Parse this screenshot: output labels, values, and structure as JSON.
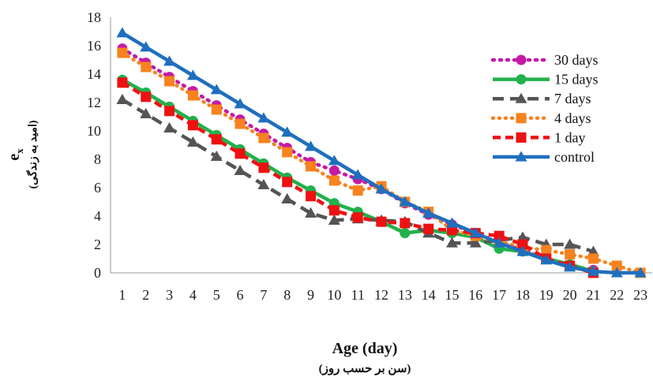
{
  "chart_data": {
    "type": "line",
    "xlabel": "Age (day)",
    "xlabel_sub": "(سن بر حسب روز)",
    "ylabel_main": "e",
    "ylabel_sub_x": "x",
    "ylabel_sub": "(امید به زندگی)",
    "xlim": [
      1,
      23
    ],
    "ylim": [
      0,
      18
    ],
    "y_ticks": [
      0,
      2,
      4,
      6,
      8,
      10,
      12,
      14,
      16,
      18
    ],
    "grid": false,
    "legend_position": "right",
    "x": [
      1,
      2,
      3,
      4,
      5,
      6,
      7,
      8,
      9,
      10,
      11,
      12,
      13,
      14,
      15,
      16,
      17,
      18,
      19,
      20,
      21,
      22,
      23
    ],
    "series": [
      {
        "name": "30 days",
        "color": "#c41aa6",
        "dash": "2 7",
        "marker": "circle",
        "x": [
          1,
          2,
          3,
          4,
          5,
          6,
          7,
          8,
          9,
          10,
          11,
          12,
          13,
          14,
          15,
          16,
          17,
          18,
          19,
          20,
          21
        ],
        "values": [
          15.8,
          14.8,
          13.8,
          12.8,
          11.8,
          10.8,
          9.8,
          8.8,
          7.8,
          7.2,
          6.6,
          5.9,
          4.9,
          4.1,
          3.4,
          2.8,
          2.1,
          1.6,
          1.0,
          0.5,
          0.2
        ]
      },
      {
        "name": "15 days",
        "color": "#22b14c",
        "dash": "",
        "marker": "circle",
        "x": [
          1,
          2,
          3,
          4,
          5,
          6,
          7,
          8,
          9,
          10,
          11,
          12,
          13,
          14,
          15,
          16,
          17,
          18,
          19,
          20,
          21
        ],
        "values": [
          13.6,
          12.7,
          11.7,
          10.7,
          9.7,
          8.7,
          7.7,
          6.7,
          5.8,
          4.9,
          4.3,
          3.6,
          2.8,
          3.0,
          2.8,
          2.5,
          1.7,
          1.5,
          1.0,
          0.6,
          0.1
        ]
      },
      {
        "name": "7 days",
        "color": "#555555",
        "dash": "14 8",
        "marker": "triangle",
        "x": [
          1,
          2,
          3,
          4,
          5,
          6,
          7,
          8,
          9,
          10,
          11,
          12,
          13,
          14,
          15,
          16,
          17,
          18,
          19,
          20,
          21
        ],
        "values": [
          12.2,
          11.2,
          10.2,
          9.2,
          8.2,
          7.2,
          6.2,
          5.2,
          4.2,
          3.7,
          3.8,
          3.7,
          3.6,
          2.8,
          2.1,
          2.1,
          2.3,
          2.5,
          2.0,
          2.0,
          1.5
        ]
      },
      {
        "name": "4 days",
        "color": "#f7821e",
        "dash": "1 7",
        "marker": "square",
        "x": [
          1,
          2,
          3,
          4,
          5,
          6,
          7,
          8,
          9,
          10,
          11,
          12,
          13,
          14,
          15,
          16,
          17,
          18,
          19,
          20,
          21,
          22,
          23
        ],
        "values": [
          15.5,
          14.5,
          13.5,
          12.5,
          11.5,
          10.5,
          9.5,
          8.5,
          7.5,
          6.5,
          5.8,
          6.1,
          5.0,
          4.3,
          3.0,
          2.6,
          2.2,
          1.8,
          1.6,
          1.3,
          1.0,
          0.5,
          0.0
        ]
      },
      {
        "name": "1 day",
        "color": "#ee1111",
        "dash": "10 6",
        "marker": "square",
        "x": [
          1,
          2,
          3,
          4,
          5,
          6,
          7,
          8,
          9,
          10,
          11,
          12,
          13,
          14,
          15,
          16,
          17,
          18,
          19,
          20,
          21
        ],
        "values": [
          13.4,
          12.4,
          11.4,
          10.4,
          9.4,
          8.4,
          7.4,
          6.4,
          5.4,
          4.4,
          3.9,
          3.6,
          3.5,
          3.1,
          3.0,
          2.8,
          2.6,
          2.0,
          1.0,
          0.5,
          0.0
        ]
      },
      {
        "name": "control",
        "color": "#1f6fbf",
        "dash": "",
        "marker": "triangle",
        "x": [
          1,
          2,
          3,
          4,
          5,
          6,
          7,
          8,
          9,
          10,
          11,
          12,
          13,
          14,
          15,
          16,
          17,
          18,
          19,
          20,
          21,
          22,
          23
        ],
        "values": [
          16.9,
          15.9,
          14.9,
          13.9,
          12.9,
          11.9,
          10.9,
          9.9,
          8.9,
          7.9,
          6.9,
          5.9,
          5.0,
          4.2,
          3.5,
          2.8,
          2.1,
          1.5,
          0.9,
          0.4,
          0.1,
          0.0,
          0.0
        ]
      }
    ]
  }
}
